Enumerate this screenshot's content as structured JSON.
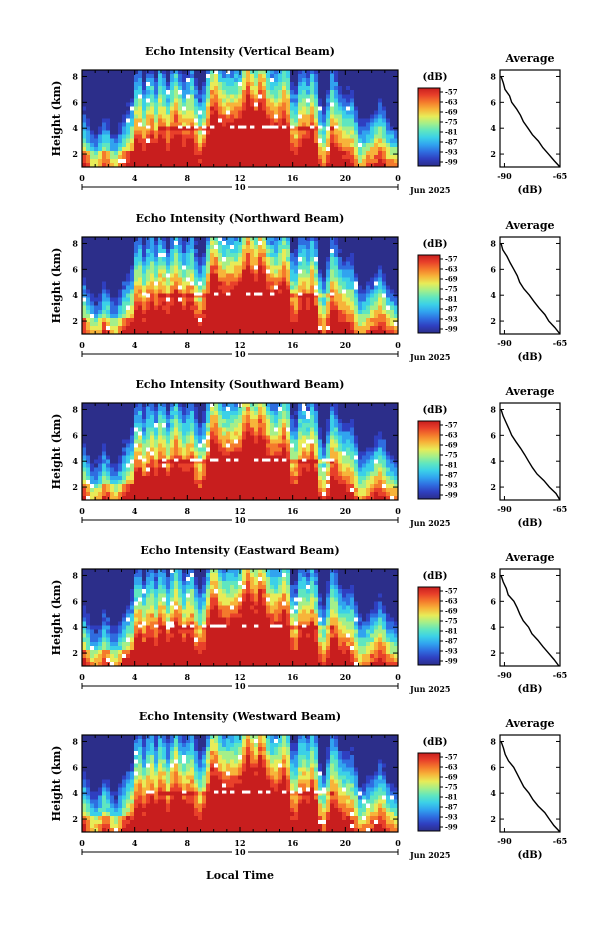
{
  "chart_data": [
    {
      "type": "heatmap",
      "title": "Echo Intensity (Vertical Beam)",
      "ylabel": "Height (km)",
      "yticks": [
        "8",
        "6",
        "4",
        "2"
      ],
      "xticks": [
        "0",
        "4",
        "8",
        "12",
        "16",
        "20",
        "0"
      ],
      "date_mid": "10",
      "date_label": "Jun 2025",
      "colorbar": {
        "unit": "(dB)",
        "ticks": [
          "-57",
          "-63",
          "-69",
          "-75",
          "-81",
          "-87",
          "-93",
          "-99"
        ]
      },
      "average": {
        "title": "Average",
        "xlabel": "(dB)",
        "xticks": [
          "-90",
          "-65"
        ],
        "yticks": [
          "8",
          "6",
          "4",
          "2"
        ],
        "height_km": [
          8.0,
          7.5,
          7.0,
          6.5,
          6.0,
          5.5,
          5.0,
          4.5,
          4.0,
          3.5,
          3.0,
          2.5,
          2.0,
          1.5,
          1.0
        ],
        "db": [
          -91.5,
          -90.5,
          -89.5,
          -88.0,
          -86.5,
          -84.5,
          -83.0,
          -81.5,
          -79.5,
          -77.5,
          -75.0,
          -72.5,
          -70.0,
          -67.5,
          -65.0
        ]
      }
    },
    {
      "type": "heatmap",
      "title": "Echo Intensity (Northward Beam)",
      "ylabel": "Height (km)",
      "yticks": [
        "8",
        "6",
        "4",
        "2"
      ],
      "xticks": [
        "0",
        "4",
        "8",
        "12",
        "16",
        "20",
        "0"
      ],
      "date_mid": "10",
      "date_label": "Jun 2025",
      "colorbar": {
        "unit": "(dB)",
        "ticks": [
          "-57",
          "-63",
          "-69",
          "-75",
          "-81",
          "-87",
          "-93",
          "-99"
        ]
      },
      "average": {
        "title": "Average",
        "xlabel": "(dB)",
        "xticks": [
          "-90",
          "-65"
        ],
        "yticks": [
          "8",
          "6",
          "4",
          "2"
        ],
        "height_km": [
          8.0,
          7.5,
          7.0,
          6.5,
          6.0,
          5.5,
          5.0,
          4.5,
          4.0,
          3.5,
          3.0,
          2.5,
          2.0,
          1.5,
          1.0
        ],
        "db": [
          -91.5,
          -90.5,
          -89.0,
          -87.5,
          -86.0,
          -84.5,
          -83.0,
          -81.0,
          -79.0,
          -77.0,
          -74.5,
          -72.0,
          -70.0,
          -67.5,
          -65.0
        ]
      }
    },
    {
      "type": "heatmap",
      "title": "Echo Intensity (Southward Beam)",
      "ylabel": "Height (km)",
      "yticks": [
        "8",
        "6",
        "4",
        "2"
      ],
      "xticks": [
        "0",
        "4",
        "8",
        "12",
        "16",
        "20",
        "0"
      ],
      "date_mid": "10",
      "date_label": "Jun 2025",
      "colorbar": {
        "unit": "(dB)",
        "ticks": [
          "-57",
          "-63",
          "-69",
          "-75",
          "-81",
          "-87",
          "-93",
          "-99"
        ]
      },
      "average": {
        "title": "Average",
        "xlabel": "(dB)",
        "xticks": [
          "-90",
          "-65"
        ],
        "yticks": [
          "8",
          "6",
          "4",
          "2"
        ],
        "height_km": [
          8.0,
          7.5,
          7.0,
          6.5,
          6.0,
          5.5,
          5.0,
          4.5,
          4.0,
          3.5,
          3.0,
          2.5,
          2.0,
          1.5,
          1.0
        ],
        "db": [
          -91.5,
          -90.5,
          -89.5,
          -88.0,
          -86.5,
          -85.0,
          -83.0,
          -81.0,
          -79.5,
          -77.5,
          -75.0,
          -72.5,
          -70.0,
          -67.0,
          -65.0
        ]
      }
    },
    {
      "type": "heatmap",
      "title": "Echo Intensity (Eastward Beam)",
      "ylabel": "Height (km)",
      "yticks": [
        "8",
        "6",
        "4",
        "2"
      ],
      "xticks": [
        "0",
        "4",
        "8",
        "12",
        "16",
        "20",
        "0"
      ],
      "date_mid": "10",
      "date_label": "Jun 2025",
      "colorbar": {
        "unit": "(dB)",
        "ticks": [
          "-57",
          "-63",
          "-69",
          "-75",
          "-81",
          "-87",
          "-93",
          "-99"
        ]
      },
      "average": {
        "title": "Average",
        "xlabel": "(dB)",
        "xticks": [
          "-90",
          "-65"
        ],
        "yticks": [
          "8",
          "6",
          "4",
          "2"
        ],
        "height_km": [
          8.0,
          7.5,
          7.0,
          6.5,
          6.0,
          5.5,
          5.0,
          4.5,
          4.0,
          3.5,
          3.0,
          2.5,
          2.0,
          1.5,
          1.0
        ],
        "db": [
          -91.5,
          -90.5,
          -89.0,
          -88.0,
          -86.0,
          -84.0,
          -83.0,
          -81.5,
          -79.0,
          -77.5,
          -75.0,
          -73.0,
          -70.5,
          -68.0,
          -65.5
        ]
      }
    },
    {
      "type": "heatmap",
      "title": "Echo Intensity (Westward Beam)",
      "ylabel": "Height (km)",
      "yticks": [
        "8",
        "6",
        "4",
        "2"
      ],
      "xticks": [
        "0",
        "4",
        "8",
        "12",
        "16",
        "20",
        "0"
      ],
      "date_mid": "10",
      "date_label": "Jun 2025",
      "colorbar": {
        "unit": "(dB)",
        "ticks": [
          "-57",
          "-63",
          "-69",
          "-75",
          "-81",
          "-87",
          "-93",
          "-99"
        ]
      },
      "average": {
        "title": "Average",
        "xlabel": "(dB)",
        "xticks": [
          "-90",
          "-65"
        ],
        "yticks": [
          "8",
          "6",
          "4",
          "2"
        ],
        "height_km": [
          8.0,
          7.5,
          7.0,
          6.5,
          6.0,
          5.5,
          5.0,
          4.5,
          4.0,
          3.5,
          3.0,
          2.5,
          2.0,
          1.5,
          1.0
        ],
        "db": [
          -91.5,
          -90.5,
          -89.5,
          -88.0,
          -86.0,
          -84.5,
          -83.0,
          -81.0,
          -79.0,
          -77.0,
          -74.5,
          -72.0,
          -70.0,
          -67.5,
          -65.0
        ]
      }
    }
  ],
  "figure": {
    "xlabel": "Local Time"
  },
  "colors": {
    "scale": [
      "#2c2e8a",
      "#2f3fc0",
      "#2f6de0",
      "#31a3ef",
      "#3bd0e8",
      "#5fe6c0",
      "#a4ef8a",
      "#e8ec58",
      "#f7b43a",
      "#f47a2c",
      "#e8402a",
      "#c81e1e"
    ]
  }
}
